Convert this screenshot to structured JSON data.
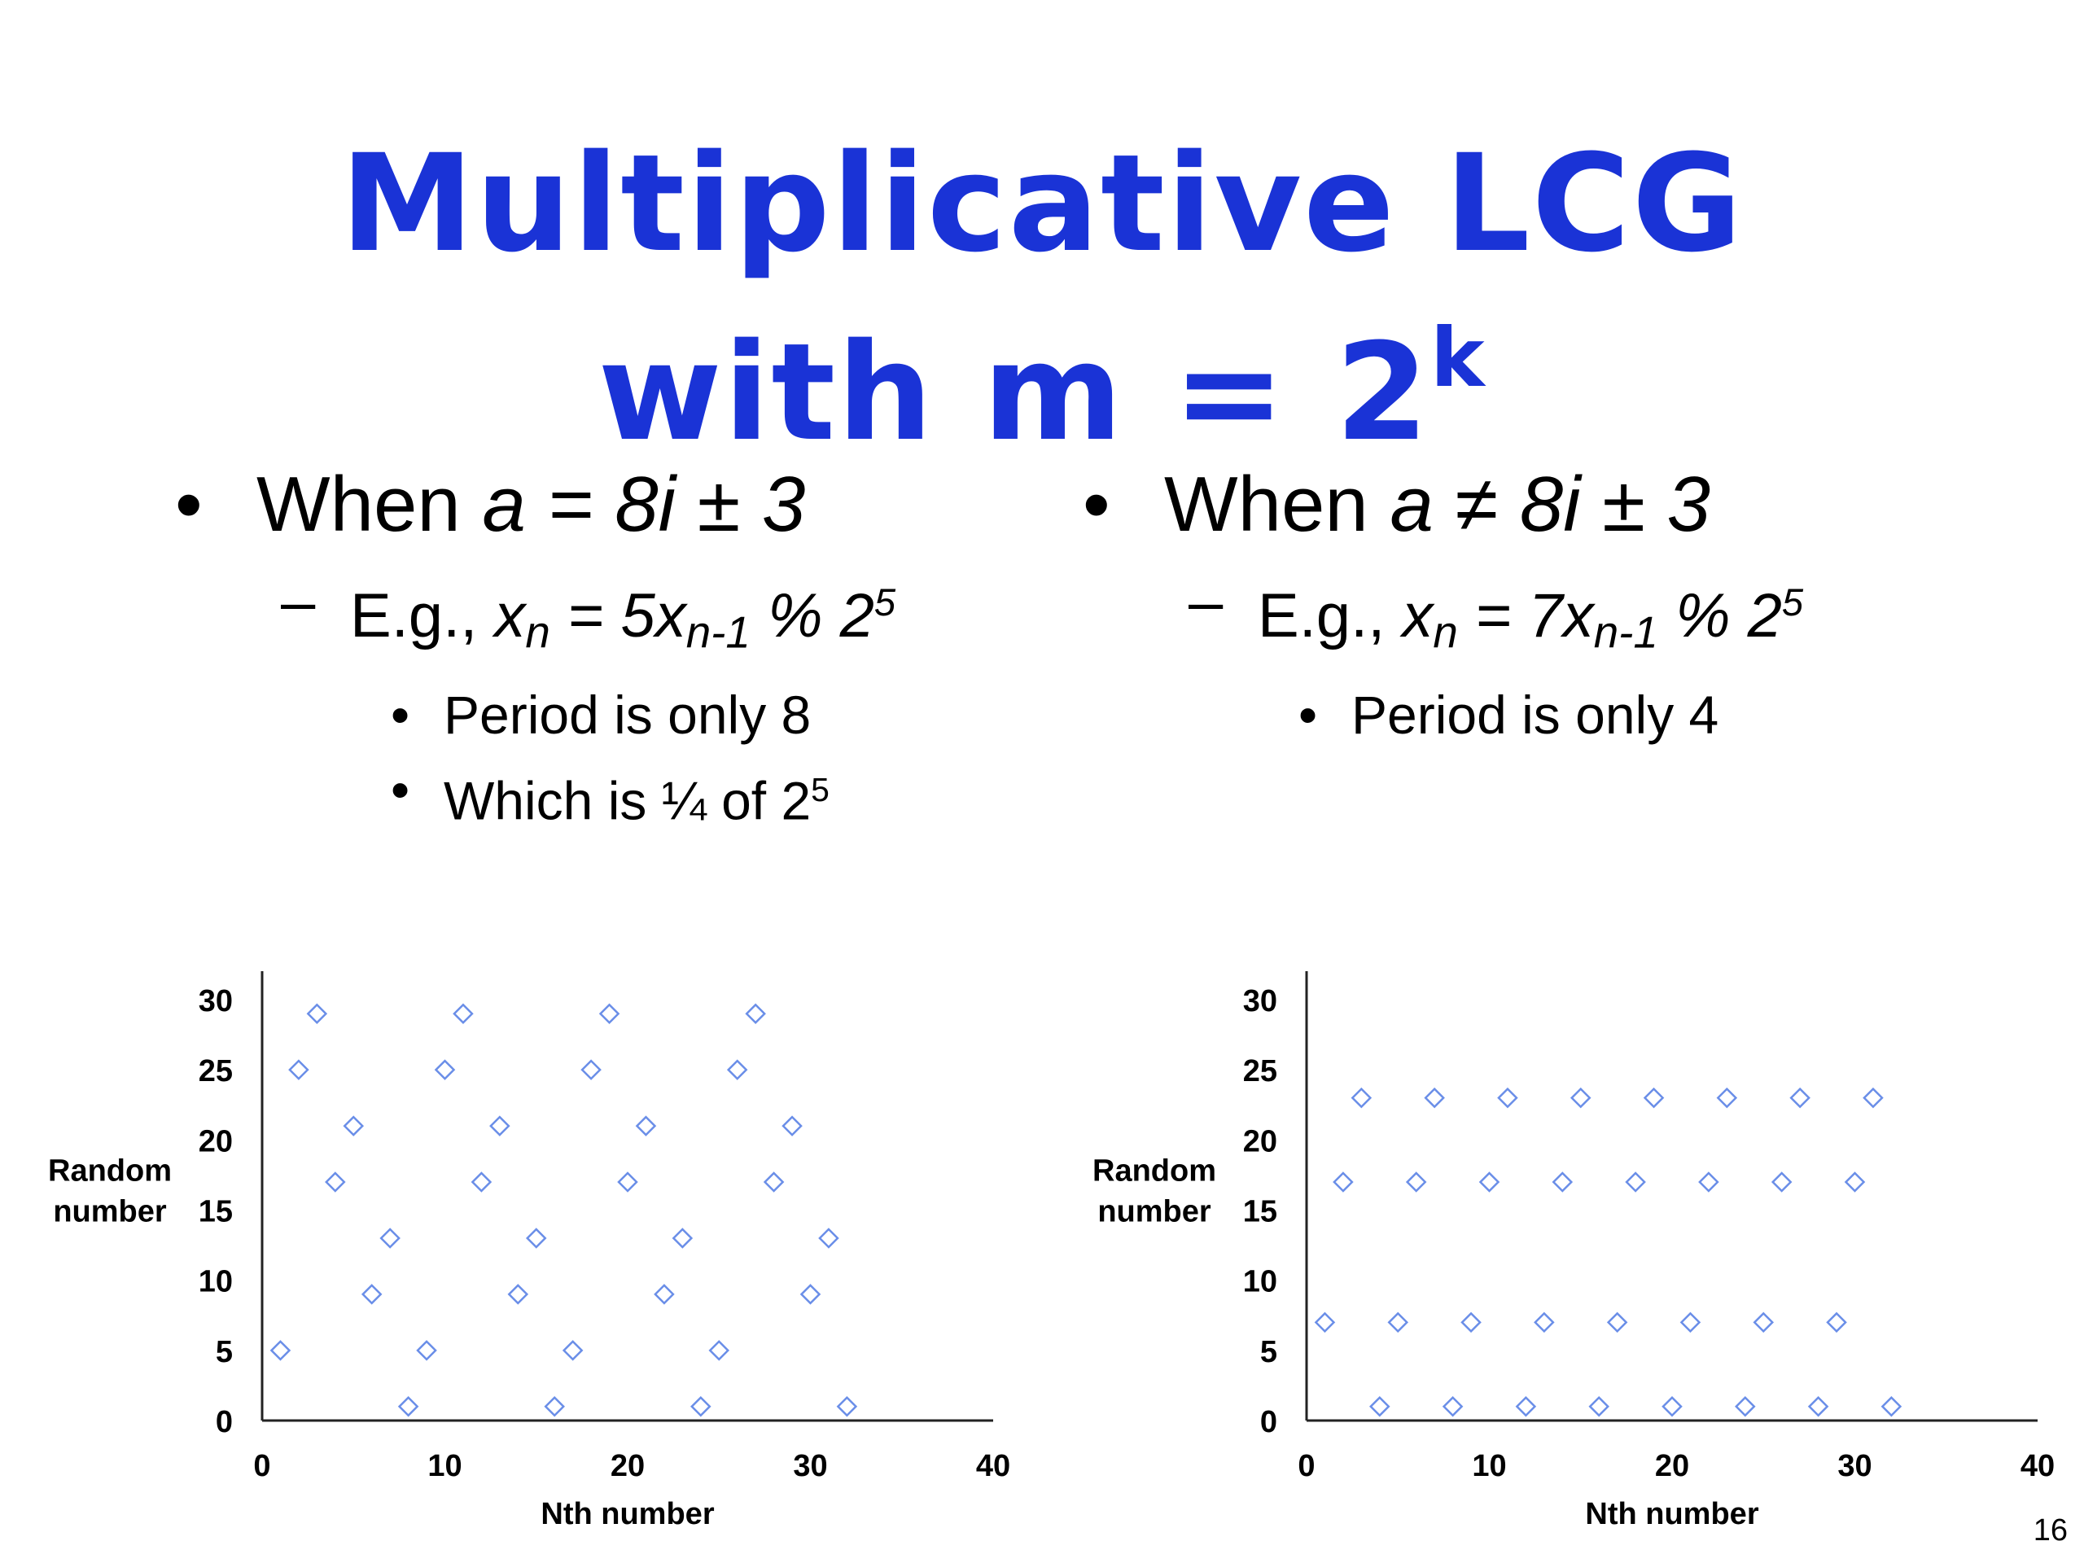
{
  "title": {
    "line1": "Multiplicative LCG",
    "line2_prefix": "with m = 2",
    "line2_sup": "k"
  },
  "left": {
    "bullet": {
      "prefix": "When ",
      "expr": "a = 8i ± 3"
    },
    "example": {
      "pre": "E.g., ",
      "x": "x",
      "n": "n",
      "mid": " = 5x",
      "n1": "n-1",
      "post": " % 2",
      "exp": "5"
    },
    "points": [
      {
        "text": "Period is only 8"
      },
      {
        "text": "Which is ¼ of 2",
        "sup": "5"
      }
    ]
  },
  "right": {
    "bullet": {
      "prefix": "When ",
      "expr": "a ≠ 8i ± 3"
    },
    "example": {
      "pre": "E.g., ",
      "x": "x",
      "n": "n",
      "mid": " = 7x",
      "n1": "n-1",
      "post": " % 2",
      "exp": "5"
    },
    "points": [
      {
        "text": "Period is only 4"
      }
    ]
  },
  "page_number": "16",
  "colors": {
    "title": "#1a33d6",
    "marker": "#6a8ee8"
  },
  "chart_data": [
    {
      "type": "scatter",
      "marker": "diamond-open",
      "xlabel": "Nth number",
      "ylabel": [
        "Random",
        "number"
      ],
      "xlim": [
        0,
        40
      ],
      "ylim": [
        0,
        30
      ],
      "xticks": [
        0,
        10,
        20,
        30,
        40
      ],
      "yticks": [
        0,
        5,
        10,
        15,
        20,
        25,
        30
      ],
      "grid": false,
      "x": [
        1,
        2,
        3,
        4,
        5,
        6,
        7,
        8,
        9,
        10,
        11,
        12,
        13,
        14,
        15,
        16,
        17,
        18,
        19,
        20,
        21,
        22,
        23,
        24,
        25,
        26,
        27,
        28,
        29,
        30,
        31,
        32
      ],
      "y": [
        5,
        25,
        29,
        17,
        21,
        9,
        13,
        1,
        5,
        25,
        29,
        17,
        21,
        9,
        13,
        1,
        5,
        25,
        29,
        17,
        21,
        9,
        13,
        1,
        5,
        25,
        29,
        17,
        21,
        9,
        13,
        1
      ]
    },
    {
      "type": "scatter",
      "marker": "diamond-open",
      "xlabel": "Nth number",
      "ylabel": [
        "Random",
        "number"
      ],
      "xlim": [
        0,
        40
      ],
      "ylim": [
        0,
        30
      ],
      "xticks": [
        0,
        10,
        20,
        30,
        40
      ],
      "yticks": [
        0,
        5,
        10,
        15,
        20,
        25,
        30
      ],
      "grid": false,
      "x": [
        1,
        2,
        3,
        4,
        5,
        6,
        7,
        8,
        9,
        10,
        11,
        12,
        13,
        14,
        15,
        16,
        17,
        18,
        19,
        20,
        21,
        22,
        23,
        24,
        25,
        26,
        27,
        28,
        29,
        30,
        31,
        32
      ],
      "y": [
        7,
        17,
        23,
        1,
        7,
        17,
        23,
        1,
        7,
        17,
        23,
        1,
        7,
        17,
        23,
        1,
        7,
        17,
        23,
        1,
        7,
        17,
        23,
        1,
        7,
        17,
        23,
        1,
        7,
        17,
        23,
        1
      ]
    }
  ]
}
